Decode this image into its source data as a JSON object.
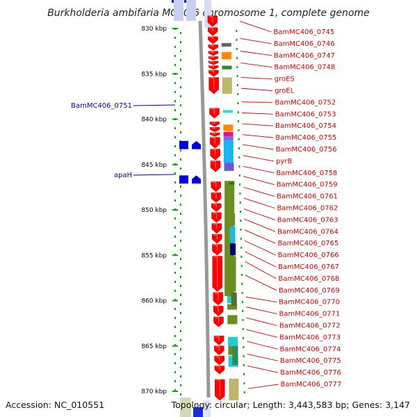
{
  "title": "Burkholderia ambifaria MC40-6 chromosome 1, complete genome",
  "footer": {
    "accession": "Accession: NC_010551",
    "topology": "Topology: circular; Length: 3,443,583 bp; Genes: 3,147"
  },
  "axis": {
    "unit": "kbp",
    "ticks": [
      "830 kbp",
      "835 kbp",
      "840 kbp",
      "845 kbp",
      "850 kbp",
      "855 kbp",
      "860 kbp",
      "865 kbp",
      "870 kbp"
    ]
  },
  "colors": {
    "forward_cds": "#ff0000",
    "reverse_cds": "#0000dd",
    "right_label": "#cc0000",
    "left_label": "#0000aa",
    "backbone": "#999999"
  },
  "left_labels": [
    {
      "text": "BamMC406_0751",
      "kbp": 842.5
    },
    {
      "text": "apaH",
      "kbp": 846.7
    }
  ],
  "right_labels": [
    {
      "text": "BamMC406_0745",
      "kbp": 829.2
    },
    {
      "text": "BamMC406_0746",
      "kbp": 831.1
    },
    {
      "text": "BamMC406_0747",
      "kbp": 832.5
    },
    {
      "text": "BamMC406_0748",
      "kbp": 833.8
    },
    {
      "text": "groES",
      "kbp": 835.4
    },
    {
      "text": "groEL",
      "kbp": 836.6
    },
    {
      "text": "BamMC406_0752",
      "kbp": 838.1
    },
    {
      "text": "BamMC406_0753",
      "kbp": 839.3
    },
    {
      "text": "BamMC406_0754",
      "kbp": 840.5
    },
    {
      "text": "BamMC406_0755",
      "kbp": 841.7
    },
    {
      "text": "BamMC406_0756",
      "kbp": 842.8
    },
    {
      "text": "pyrB",
      "kbp": 844.0
    },
    {
      "text": "BamMC406_0758",
      "kbp": 845.2
    },
    {
      "text": "BamMC406_0759",
      "kbp": 846.3
    },
    {
      "text": "BamMC406_0761",
      "kbp": 847.5
    },
    {
      "text": "BamMC406_0762",
      "kbp": 848.7
    },
    {
      "text": "BamMC406_0763",
      "kbp": 849.9
    },
    {
      "text": "BamMC406_0764",
      "kbp": 851.0
    },
    {
      "text": "BamMC406_0765",
      "kbp": 852.2
    },
    {
      "text": "BamMC406_0766",
      "kbp": 853.4
    },
    {
      "text": "BamMC406_0767",
      "kbp": 854.6
    },
    {
      "text": "BamMC406_0768",
      "kbp": 855.7
    },
    {
      "text": "BamMC406_0769",
      "kbp": 857.2
    },
    {
      "text": "BamMC406_0770",
      "kbp": 859.6
    },
    {
      "text": "BamMC406_0771",
      "kbp": 860.7
    },
    {
      "text": "BamMC406_0772",
      "kbp": 861.9
    },
    {
      "text": "BamMC406_0773",
      "kbp": 863.2
    },
    {
      "text": "BamMC406_0774",
      "kbp": 864.5
    },
    {
      "text": "BamMC406_0775",
      "kbp": 865.9
    },
    {
      "text": "BamMC406_0776",
      "kbp": 867.2
    },
    {
      "text": "BamMC406_0777",
      "kbp": 869.7
    }
  ],
  "forward_genes": [
    {
      "start": 828.6,
      "end": 829.8
    },
    {
      "start": 829.9,
      "end": 830.8
    },
    {
      "start": 830.9,
      "end": 831.7
    },
    {
      "start": 831.8,
      "end": 832.4
    },
    {
      "start": 832.5,
      "end": 833.0
    },
    {
      "start": 833.1,
      "end": 833.5
    },
    {
      "start": 833.6,
      "end": 834.0
    },
    {
      "start": 834.1,
      "end": 834.5
    },
    {
      "start": 834.6,
      "end": 835.3
    },
    {
      "start": 835.4,
      "end": 837.2
    },
    {
      "start": 838.8,
      "end": 839.9
    },
    {
      "start": 840.3,
      "end": 840.8
    },
    {
      "start": 840.9,
      "end": 841.4
    },
    {
      "start": 841.5,
      "end": 841.9
    },
    {
      "start": 842.0,
      "end": 843.2
    },
    {
      "start": 843.3,
      "end": 844.5
    },
    {
      "start": 844.6,
      "end": 845.8
    },
    {
      "start": 846.9,
      "end": 848.0
    },
    {
      "start": 848.1,
      "end": 849.2
    },
    {
      "start": 849.3,
      "end": 850.2
    },
    {
      "start": 850.3,
      "end": 851.4
    },
    {
      "start": 851.5,
      "end": 852.6
    },
    {
      "start": 852.7,
      "end": 853.7
    },
    {
      "start": 853.8,
      "end": 855.0
    },
    {
      "start": 855.1,
      "end": 859.0
    },
    {
      "start": 859.1,
      "end": 860.5
    },
    {
      "start": 860.6,
      "end": 861.7
    },
    {
      "start": 861.8,
      "end": 862.9
    },
    {
      "start": 863.9,
      "end": 864.9
    },
    {
      "start": 865.0,
      "end": 866.0
    },
    {
      "start": 866.1,
      "end": 867.1
    },
    {
      "start": 867.2,
      "end": 868.1
    },
    {
      "start": 868.7,
      "end": 871.0
    }
  ],
  "reverse_genes": [
    {
      "start": 842.4,
      "end": 843.3,
      "lane": 0
    },
    {
      "start": 842.4,
      "end": 843.3,
      "lane": 1
    },
    {
      "start": 846.2,
      "end": 847.1,
      "lane": 0
    },
    {
      "start": 846.2,
      "end": 847.1,
      "lane": 1
    }
  ],
  "function_blocks_outer": [
    {
      "start": 831.6,
      "end": 832.0,
      "color": "#666666"
    },
    {
      "start": 832.6,
      "end": 833.4,
      "color": "#ff8800"
    },
    {
      "start": 834.1,
      "end": 834.5,
      "color": "#2e8b2e"
    },
    {
      "start": 835.4,
      "end": 837.2,
      "color": "#bdb76b"
    },
    {
      "start": 839.0,
      "end": 839.3,
      "color": "#22dddd"
    },
    {
      "start": 840.6,
      "end": 841.3,
      "color": "#ff8800"
    },
    {
      "start": 841.4,
      "end": 841.9,
      "color": "#ee1177"
    },
    {
      "start": 841.9,
      "end": 842.3,
      "color": "#7b68ee"
    },
    {
      "start": 842.3,
      "end": 844.8,
      "color": "#1eb4f0"
    },
    {
      "start": 844.8,
      "end": 845.7,
      "color": "#6a5acd"
    },
    {
      "start": 846.8,
      "end": 859.5,
      "color": "#6b8e23"
    },
    {
      "start": 859.5,
      "end": 860.3,
      "color": "#22cccc"
    },
    {
      "start": 860.4,
      "end": 861.0,
      "color": "#6b8e23"
    },
    {
      "start": 861.6,
      "end": 862.6,
      "color": "#6b8e23"
    },
    {
      "start": 864.0,
      "end": 865.0,
      "color": "#22cccc"
    },
    {
      "start": 865.0,
      "end": 866.0,
      "color": "#6b8e23"
    },
    {
      "start": 866.1,
      "end": 867.3,
      "color": "#22cccc"
    },
    {
      "start": 868.6,
      "end": 871.0,
      "color": "#bdb76b"
    }
  ],
  "function_blocks_inner": [
    {
      "start": 846.8,
      "end": 850.2,
      "color": "#6b8e23"
    },
    {
      "start": 850.4,
      "end": 851.7,
      "color": "#6b8e23"
    },
    {
      "start": 851.8,
      "end": 853.6,
      "color": "#22bbdd"
    },
    {
      "start": 853.7,
      "end": 855.0,
      "color": "#000080"
    },
    {
      "start": 855.1,
      "end": 859.0,
      "color": "#6b8e23"
    },
    {
      "start": 859.1,
      "end": 860.6,
      "color": "#556b2f"
    },
    {
      "start": 865.0,
      "end": 867.1,
      "color": "#2e8b57"
    },
    {
      "start": 847.0,
      "end": 847.2,
      "color": "#008800"
    }
  ]
}
